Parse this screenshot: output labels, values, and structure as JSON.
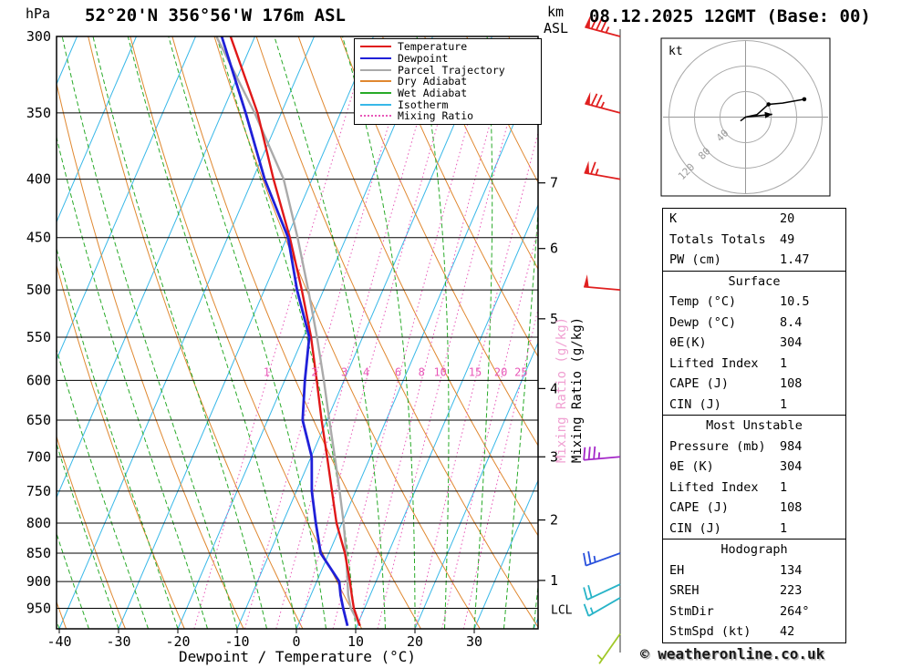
{
  "title": "52°20'N 356°56'W 176m ASL",
  "datetime": "08.12.2025 12GMT (Base: 00)",
  "labels": {
    "pressure_unit": "hPa",
    "km": "km",
    "asl": "ASL",
    "x_axis": "Dewpoint / Temperature (°C)",
    "mixing_ratio_axis": "Mixing Ratio (g/kg)",
    "lcl": "LCL",
    "copyright": "© weatheronline.co.uk"
  },
  "legend": {
    "items": [
      {
        "label": "Temperature",
        "color": "#e01818",
        "dash": "solid"
      },
      {
        "label": "Dewpoint",
        "color": "#2020d8",
        "dash": "solid"
      },
      {
        "label": "Parcel Trajectory",
        "color": "#aaaaaa",
        "dash": "solid"
      },
      {
        "label": "Dry Adiabat",
        "color": "#e08830",
        "dash": "solid"
      },
      {
        "label": "Wet Adiabat",
        "color": "#28aa28",
        "dash": "solid"
      },
      {
        "label": "Isotherm",
        "color": "#38b8e8",
        "dash": "solid"
      },
      {
        "label": "Mixing Ratio",
        "color": "#e858b8",
        "dash": "dotted"
      }
    ]
  },
  "table": {
    "boxes": [
      {
        "rows": [
          [
            "K",
            "20"
          ],
          [
            "Totals Totals",
            "49"
          ],
          [
            "PW (cm)",
            "1.47"
          ]
        ]
      },
      {
        "title": "Surface",
        "rows": [
          [
            "Temp (°C)",
            "10.5"
          ],
          [
            "Dewp (°C)",
            "8.4"
          ],
          [
            "θE(K)",
            "304"
          ],
          [
            "Lifted Index",
            "1"
          ],
          [
            "CAPE (J)",
            "108"
          ],
          [
            "CIN (J)",
            "1"
          ]
        ]
      },
      {
        "title": "Most Unstable",
        "rows": [
          [
            "Pressure (mb)",
            "984"
          ],
          [
            "θE (K)",
            "304"
          ],
          [
            "Lifted Index",
            "1"
          ],
          [
            "CAPE (J)",
            "108"
          ],
          [
            "CIN (J)",
            "1"
          ]
        ]
      },
      {
        "title": "Hodograph",
        "rows": [
          [
            "EH",
            "134"
          ],
          [
            "SREH",
            "223"
          ],
          [
            "StmDir",
            "264°"
          ],
          [
            "StmSpd (kt)",
            "42"
          ]
        ]
      }
    ]
  },
  "chart_data": {
    "type": "skewt_log_p_sounding",
    "x_axis": {
      "label": "Dewpoint / Temperature (°C)",
      "ticks_c": [
        -40,
        -30,
        -20,
        -10,
        0,
        10,
        20,
        30
      ],
      "range_c": [
        -40,
        41
      ]
    },
    "pressure_axis": {
      "unit": "hPa",
      "ticks_hpa": [
        300,
        350,
        400,
        450,
        500,
        550,
        600,
        650,
        700,
        750,
        800,
        850,
        900,
        950
      ],
      "range_hpa": [
        300,
        990
      ]
    },
    "altitude_axis": {
      "unit": "km ASL",
      "levels": [
        {
          "km": 1,
          "hpa": 898
        },
        {
          "km": 2,
          "hpa": 795
        },
        {
          "km": 3,
          "hpa": 700
        },
        {
          "km": 4,
          "hpa": 610
        },
        {
          "km": 5,
          "hpa": 530
        },
        {
          "km": 6,
          "hpa": 460
        },
        {
          "km": 7,
          "hpa": 403
        }
      ]
    },
    "mixing_ratio_values_g_kg": [
      1,
      2,
      3,
      4,
      6,
      8,
      10,
      15,
      20,
      25
    ],
    "mixing_ratio_label_pressure_hpa": 600,
    "lcl_pressure_hpa": 953,
    "sounding": {
      "pressure_hpa": [
        984,
        950,
        925,
        900,
        850,
        800,
        750,
        700,
        650,
        600,
        550,
        500,
        450,
        400,
        350,
        300
      ],
      "temperature_c": [
        10.5,
        8.2,
        6.9,
        5.6,
        2.7,
        -0.9,
        -4.0,
        -7.3,
        -10.9,
        -14.6,
        -18.7,
        -23.7,
        -29.5,
        -36.5,
        -44.0,
        -54.1
      ],
      "dewpoint_c": [
        8.4,
        6.4,
        5.0,
        3.8,
        -1.4,
        -4.4,
        -7.4,
        -9.9,
        -14.1,
        -16.6,
        -19.0,
        -24.5,
        -29.8,
        -38.0,
        -46.0,
        -55.6
      ],
      "parcel_c": [
        10.5,
        7.7,
        6.3,
        5.2,
        2.9,
        0.3,
        -2.7,
        -6.0,
        -9.6,
        -13.4,
        -17.7,
        -22.6,
        -28.2,
        -34.8,
        -44.5,
        -56.5
      ]
    },
    "wind_barbs": [
      {
        "pressure_hpa": 300,
        "dir_deg": 285,
        "speed_kt": 85,
        "color": "#e02020"
      },
      {
        "pressure_hpa": 350,
        "dir_deg": 285,
        "speed_kt": 75,
        "color": "#e02020"
      },
      {
        "pressure_hpa": 400,
        "dir_deg": 280,
        "speed_kt": 65,
        "color": "#e02020"
      },
      {
        "pressure_hpa": 500,
        "dir_deg": 275,
        "speed_kt": 50,
        "color": "#e02020"
      },
      {
        "pressure_hpa": 700,
        "dir_deg": 265,
        "speed_kt": 35,
        "color": "#a428c8"
      },
      {
        "pressure_hpa": 850,
        "dir_deg": 250,
        "speed_kt": 25,
        "color": "#2850dc"
      },
      {
        "pressure_hpa": 905,
        "dir_deg": 245,
        "speed_kt": 20,
        "color": "#28b4c8"
      },
      {
        "pressure_hpa": 930,
        "dir_deg": 240,
        "speed_kt": 15,
        "color": "#28b4c8"
      },
      {
        "pressure_hpa": 1000,
        "dir_deg": 215,
        "speed_kt": 5,
        "color": "#a0c828"
      }
    ],
    "hodograph": {
      "unit_label": "kt",
      "ring_speeds_kt": [
        40,
        80,
        120
      ],
      "trace_uv_kt": [
        [
          -8,
          -6
        ],
        [
          0,
          0
        ],
        [
          18,
          4
        ],
        [
          36,
          20
        ],
        [
          58,
          22
        ],
        [
          92,
          28
        ]
      ],
      "dot_points_kt": [
        [
          36,
          20
        ],
        [
          92,
          28
        ]
      ],
      "storm_motion": {
        "dir_deg": 264,
        "speed_kt": 42
      }
    },
    "style": {
      "temperature": "#e01818",
      "dewpoint": "#2020d8",
      "parcel": "#aaaaaa",
      "dry_adiabat": "#e08830",
      "wet_adiabat": "#28aa28",
      "isotherm": "#38b8e8",
      "mixing_ratio": "#e858b8",
      "grid": "#000000"
    }
  }
}
